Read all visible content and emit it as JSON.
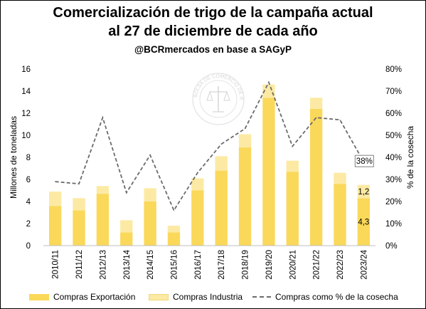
{
  "header": {
    "title_line1": "Comercialización de trigo de la campaña actual",
    "title_line2": "al 27 de diciembre de cada año",
    "subtitle": "@BCRmercados en base a SAGyP"
  },
  "watermark": {
    "text": "BOLSA DE COMERCIO DE ROSARIO"
  },
  "chart_data": {
    "type": "bar",
    "stacked": true,
    "categories": [
      "2010/11",
      "2011/12",
      "2012/13",
      "2013/14",
      "2014/15",
      "2015/16",
      "2016/17",
      "2017/18",
      "2018/19",
      "2019/20",
      "2020/21",
      "2021/22",
      "2022/23",
      "2023/24"
    ],
    "series": [
      {
        "name": "Compras Exportación",
        "axis": "left",
        "values": [
          3.6,
          3.2,
          4.7,
          1.2,
          4.0,
          1.2,
          5.0,
          6.8,
          8.9,
          13.4,
          6.7,
          12.4,
          5.6,
          4.3
        ],
        "color": "#FAD85A"
      },
      {
        "name": "Compras Industria",
        "axis": "left",
        "values": [
          1.3,
          1.1,
          0.7,
          1.1,
          1.2,
          0.6,
          1.1,
          1.3,
          1.2,
          1.2,
          1.0,
          1.0,
          1.0,
          1.2
        ],
        "color": "#FCEAA4"
      },
      {
        "name": "Compras como % de la cosecha",
        "axis": "right",
        "type": "line",
        "values": [
          29,
          28,
          58,
          24,
          41,
          16,
          33,
          46,
          53,
          74,
          45,
          58,
          57,
          38
        ],
        "color": "#6b6b6b",
        "dash": true
      }
    ],
    "ylabel": "Millones de toneladas",
    "ylabel_right": "% de la cosecha",
    "ylim": [
      0,
      16
    ],
    "yticks": [
      0,
      2,
      4,
      6,
      8,
      10,
      12,
      14,
      16
    ],
    "ylim_right": [
      0,
      80
    ],
    "yticks_right": [
      "0%",
      "10%",
      "20%",
      "30%",
      "40%",
      "50%",
      "60%",
      "70%",
      "80%"
    ],
    "annotations": {
      "export_last": "4,3",
      "industry_last": "1,2",
      "pct_last": "38%"
    },
    "grid": false,
    "legend_position": "bottom"
  }
}
